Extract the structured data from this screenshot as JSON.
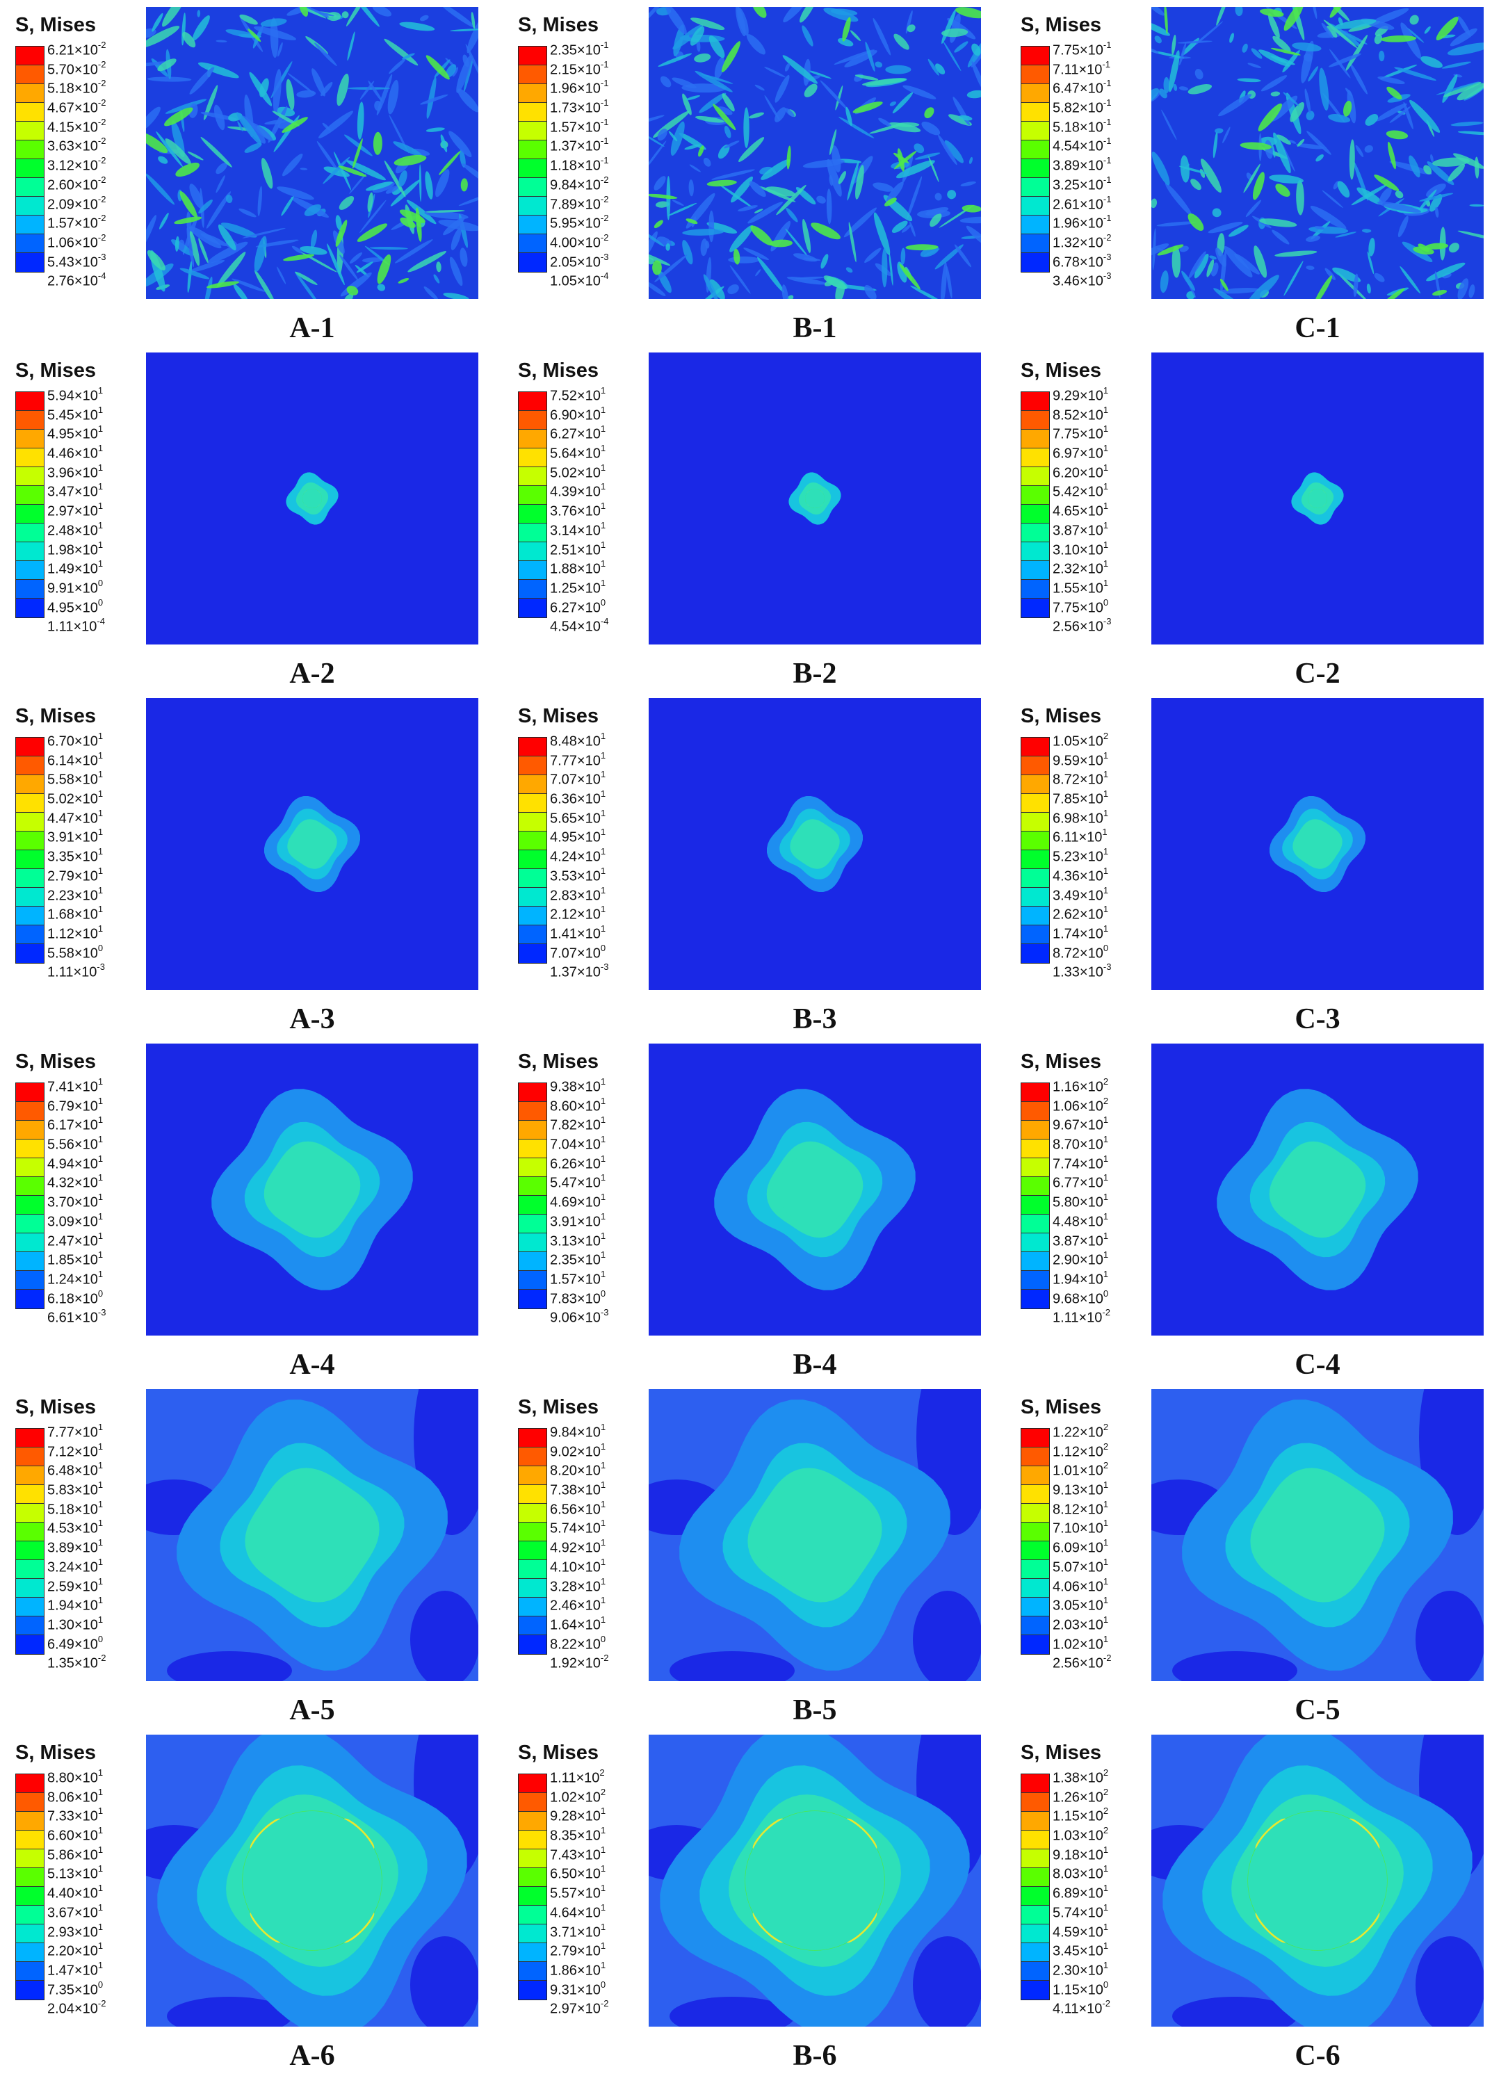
{
  "legend_title": "S, Mises",
  "colors": [
    "#ff0000",
    "#ff5a00",
    "#ffa800",
    "#ffe100",
    "#c6ff00",
    "#5aff00",
    "#00ff2c",
    "#00ff96",
    "#00e8d0",
    "#00b4ff",
    "#0064ff",
    "#0028ff"
  ],
  "panels": [
    {
      "id": "A-1",
      "caption": "A-1",
      "pattern": "noise",
      "ticks": [
        [
          "6.21",
          "-2"
        ],
        [
          "5.70",
          "-2"
        ],
        [
          "5.18",
          "-2"
        ],
        [
          "4.67",
          "-2"
        ],
        [
          "4.15",
          "-2"
        ],
        [
          "3.63",
          "-2"
        ],
        [
          "3.12",
          "-2"
        ],
        [
          "2.60",
          "-2"
        ],
        [
          "2.09",
          "-2"
        ],
        [
          "1.57",
          "-2"
        ],
        [
          "1.06",
          "-2"
        ],
        [
          "5.43",
          "-3"
        ],
        [
          "2.76",
          "-4"
        ]
      ]
    },
    {
      "id": "B-1",
      "caption": "B-1",
      "pattern": "noise",
      "ticks": [
        [
          "2.35",
          "-1"
        ],
        [
          "2.15",
          "-1"
        ],
        [
          "1.96",
          "-1"
        ],
        [
          "1.73",
          "-1"
        ],
        [
          "1.57",
          "-1"
        ],
        [
          "1.37",
          "-1"
        ],
        [
          "1.18",
          "-1"
        ],
        [
          "9.84",
          "-2"
        ],
        [
          "7.89",
          "-2"
        ],
        [
          "5.95",
          "-2"
        ],
        [
          "4.00",
          "-2"
        ],
        [
          "2.05",
          "-3"
        ],
        [
          "1.05",
          "-4"
        ]
      ]
    },
    {
      "id": "C-1",
      "caption": "C-1",
      "pattern": "noise",
      "ticks": [
        [
          "7.75",
          "-1"
        ],
        [
          "7.11",
          "-1"
        ],
        [
          "6.47",
          "-1"
        ],
        [
          "5.82",
          "-1"
        ],
        [
          "5.18",
          "-1"
        ],
        [
          "4.54",
          "-1"
        ],
        [
          "3.89",
          "-1"
        ],
        [
          "3.25",
          "-1"
        ],
        [
          "2.61",
          "-1"
        ],
        [
          "1.96",
          "-1"
        ],
        [
          "1.32",
          "-2"
        ],
        [
          "6.78",
          "-3"
        ],
        [
          "3.46",
          "-3"
        ]
      ]
    },
    {
      "id": "A-2",
      "caption": "A-2",
      "pattern": "tiny",
      "ticks": [
        [
          "5.94",
          "1"
        ],
        [
          "5.45",
          "1"
        ],
        [
          "4.95",
          "1"
        ],
        [
          "4.46",
          "1"
        ],
        [
          "3.96",
          "1"
        ],
        [
          "3.47",
          "1"
        ],
        [
          "2.97",
          "1"
        ],
        [
          "2.48",
          "1"
        ],
        [
          "1.98",
          "1"
        ],
        [
          "1.49",
          "1"
        ],
        [
          "9.91",
          "0"
        ],
        [
          "4.95",
          "0"
        ],
        [
          "1.11",
          "-4"
        ]
      ]
    },
    {
      "id": "B-2",
      "caption": "B-2",
      "pattern": "tiny",
      "ticks": [
        [
          "7.52",
          "1"
        ],
        [
          "6.90",
          "1"
        ],
        [
          "6.27",
          "1"
        ],
        [
          "5.64",
          "1"
        ],
        [
          "5.02",
          "1"
        ],
        [
          "4.39",
          "1"
        ],
        [
          "3.76",
          "1"
        ],
        [
          "3.14",
          "1"
        ],
        [
          "2.51",
          "1"
        ],
        [
          "1.88",
          "1"
        ],
        [
          "1.25",
          "1"
        ],
        [
          "6.27",
          "0"
        ],
        [
          "4.54",
          "-4"
        ]
      ]
    },
    {
      "id": "C-2",
      "caption": "C-2",
      "pattern": "tiny",
      "ticks": [
        [
          "9.29",
          "1"
        ],
        [
          "8.52",
          "1"
        ],
        [
          "7.75",
          "1"
        ],
        [
          "6.97",
          "1"
        ],
        [
          "6.20",
          "1"
        ],
        [
          "5.42",
          "1"
        ],
        [
          "4.65",
          "1"
        ],
        [
          "3.87",
          "1"
        ],
        [
          "3.10",
          "1"
        ],
        [
          "2.32",
          "1"
        ],
        [
          "1.55",
          "1"
        ],
        [
          "7.75",
          "0"
        ],
        [
          "2.56",
          "-3"
        ]
      ]
    },
    {
      "id": "A-3",
      "caption": "A-3",
      "pattern": "small",
      "ticks": [
        [
          "6.70",
          "1"
        ],
        [
          "6.14",
          "1"
        ],
        [
          "5.58",
          "1"
        ],
        [
          "5.02",
          "1"
        ],
        [
          "4.47",
          "1"
        ],
        [
          "3.91",
          "1"
        ],
        [
          "3.35",
          "1"
        ],
        [
          "2.79",
          "1"
        ],
        [
          "2.23",
          "1"
        ],
        [
          "1.68",
          "1"
        ],
        [
          "1.12",
          "1"
        ],
        [
          "5.58",
          "0"
        ],
        [
          "1.11",
          "-3"
        ]
      ]
    },
    {
      "id": "B-3",
      "caption": "B-3",
      "pattern": "small",
      "ticks": [
        [
          "8.48",
          "1"
        ],
        [
          "7.77",
          "1"
        ],
        [
          "7.07",
          "1"
        ],
        [
          "6.36",
          "1"
        ],
        [
          "5.65",
          "1"
        ],
        [
          "4.95",
          "1"
        ],
        [
          "4.24",
          "1"
        ],
        [
          "3.53",
          "1"
        ],
        [
          "2.83",
          "1"
        ],
        [
          "2.12",
          "1"
        ],
        [
          "1.41",
          "1"
        ],
        [
          "7.07",
          "0"
        ],
        [
          "1.37",
          "-3"
        ]
      ]
    },
    {
      "id": "C-3",
      "caption": "C-3",
      "pattern": "small",
      "ticks": [
        [
          "1.05",
          "2"
        ],
        [
          "9.59",
          "1"
        ],
        [
          "8.72",
          "1"
        ],
        [
          "7.85",
          "1"
        ],
        [
          "6.98",
          "1"
        ],
        [
          "6.11",
          "1"
        ],
        [
          "5.23",
          "1"
        ],
        [
          "4.36",
          "1"
        ],
        [
          "3.49",
          "1"
        ],
        [
          "2.62",
          "1"
        ],
        [
          "1.74",
          "1"
        ],
        [
          "8.72",
          "0"
        ],
        [
          "1.33",
          "-3"
        ]
      ]
    },
    {
      "id": "A-4",
      "caption": "A-4",
      "pattern": "medium",
      "ticks": [
        [
          "7.41",
          "1"
        ],
        [
          "6.79",
          "1"
        ],
        [
          "6.17",
          "1"
        ],
        [
          "5.56",
          "1"
        ],
        [
          "4.94",
          "1"
        ],
        [
          "4.32",
          "1"
        ],
        [
          "3.70",
          "1"
        ],
        [
          "3.09",
          "1"
        ],
        [
          "2.47",
          "1"
        ],
        [
          "1.85",
          "1"
        ],
        [
          "1.24",
          "1"
        ],
        [
          "6.18",
          "0"
        ],
        [
          "6.61",
          "-3"
        ]
      ]
    },
    {
      "id": "B-4",
      "caption": "B-4",
      "pattern": "medium",
      "ticks": [
        [
          "9.38",
          "1"
        ],
        [
          "8.60",
          "1"
        ],
        [
          "7.82",
          "1"
        ],
        [
          "7.04",
          "1"
        ],
        [
          "6.26",
          "1"
        ],
        [
          "5.47",
          "1"
        ],
        [
          "4.69",
          "1"
        ],
        [
          "3.91",
          "1"
        ],
        [
          "3.13",
          "1"
        ],
        [
          "2.35",
          "1"
        ],
        [
          "1.57",
          "1"
        ],
        [
          "7.83",
          "0"
        ],
        [
          "9.06",
          "-3"
        ]
      ]
    },
    {
      "id": "C-4",
      "caption": "C-4",
      "pattern": "medium",
      "ticks": [
        [
          "1.16",
          "2"
        ],
        [
          "1.06",
          "2"
        ],
        [
          "9.67",
          "1"
        ],
        [
          "8.70",
          "1"
        ],
        [
          "7.74",
          "1"
        ],
        [
          "6.77",
          "1"
        ],
        [
          "5.80",
          "1"
        ],
        [
          "4.48",
          "1"
        ],
        [
          "3.87",
          "1"
        ],
        [
          "2.90",
          "1"
        ],
        [
          "1.94",
          "1"
        ],
        [
          "9.68",
          "0"
        ],
        [
          "1.11",
          "-2"
        ]
      ]
    },
    {
      "id": "A-5",
      "caption": "A-5",
      "pattern": "large",
      "ticks": [
        [
          "7.77",
          "1"
        ],
        [
          "7.12",
          "1"
        ],
        [
          "6.48",
          "1"
        ],
        [
          "5.83",
          "1"
        ],
        [
          "5.18",
          "1"
        ],
        [
          "4.53",
          "1"
        ],
        [
          "3.89",
          "1"
        ],
        [
          "3.24",
          "1"
        ],
        [
          "2.59",
          "1"
        ],
        [
          "1.94",
          "1"
        ],
        [
          "1.30",
          "1"
        ],
        [
          "6.49",
          "0"
        ],
        [
          "1.35",
          "-2"
        ]
      ]
    },
    {
      "id": "B-5",
      "caption": "B-5",
      "pattern": "large",
      "ticks": [
        [
          "9.84",
          "1"
        ],
        [
          "9.02",
          "1"
        ],
        [
          "8.20",
          "1"
        ],
        [
          "7.38",
          "1"
        ],
        [
          "6.56",
          "1"
        ],
        [
          "5.74",
          "1"
        ],
        [
          "4.92",
          "1"
        ],
        [
          "4.10",
          "1"
        ],
        [
          "3.28",
          "1"
        ],
        [
          "2.46",
          "1"
        ],
        [
          "1.64",
          "1"
        ],
        [
          "8.22",
          "0"
        ],
        [
          "1.92",
          "-2"
        ]
      ]
    },
    {
      "id": "C-5",
      "caption": "C-5",
      "pattern": "large",
      "ticks": [
        [
          "1.22",
          "2"
        ],
        [
          "1.12",
          "2"
        ],
        [
          "1.01",
          "2"
        ],
        [
          "9.13",
          "1"
        ],
        [
          "8.12",
          "1"
        ],
        [
          "7.10",
          "1"
        ],
        [
          "6.09",
          "1"
        ],
        [
          "5.07",
          "1"
        ],
        [
          "4.06",
          "1"
        ],
        [
          "3.05",
          "1"
        ],
        [
          "2.03",
          "1"
        ],
        [
          "1.02",
          "1"
        ],
        [
          "2.56",
          "-2"
        ]
      ]
    },
    {
      "id": "A-6",
      "caption": "A-6",
      "pattern": "ring",
      "ticks": [
        [
          "8.80",
          "1"
        ],
        [
          "8.06",
          "1"
        ],
        [
          "7.33",
          "1"
        ],
        [
          "6.60",
          "1"
        ],
        [
          "5.86",
          "1"
        ],
        [
          "5.13",
          "1"
        ],
        [
          "4.40",
          "1"
        ],
        [
          "3.67",
          "1"
        ],
        [
          "2.93",
          "1"
        ],
        [
          "2.20",
          "1"
        ],
        [
          "1.47",
          "1"
        ],
        [
          "7.35",
          "0"
        ],
        [
          "2.04",
          "-2"
        ]
      ]
    },
    {
      "id": "B-6",
      "caption": "B-6",
      "pattern": "ring",
      "ticks": [
        [
          "1.11",
          "2"
        ],
        [
          "1.02",
          "2"
        ],
        [
          "9.28",
          "1"
        ],
        [
          "8.35",
          "1"
        ],
        [
          "7.43",
          "1"
        ],
        [
          "6.50",
          "1"
        ],
        [
          "5.57",
          "1"
        ],
        [
          "4.64",
          "1"
        ],
        [
          "3.71",
          "1"
        ],
        [
          "2.79",
          "1"
        ],
        [
          "1.86",
          "1"
        ],
        [
          "9.31",
          "0"
        ],
        [
          "2.97",
          "-2"
        ]
      ]
    },
    {
      "id": "C-6",
      "caption": "C-6",
      "pattern": "ring",
      "ticks": [
        [
          "1.38",
          "2"
        ],
        [
          "1.26",
          "2"
        ],
        [
          "1.15",
          "2"
        ],
        [
          "1.03",
          "2"
        ],
        [
          "9.18",
          "1"
        ],
        [
          "8.03",
          "1"
        ],
        [
          "6.89",
          "1"
        ],
        [
          "5.74",
          "1"
        ],
        [
          "4.59",
          "1"
        ],
        [
          "3.45",
          "1"
        ],
        [
          "2.30",
          "1"
        ],
        [
          "1.15",
          "0"
        ],
        [
          "4.11",
          "-2"
        ]
      ]
    }
  ]
}
